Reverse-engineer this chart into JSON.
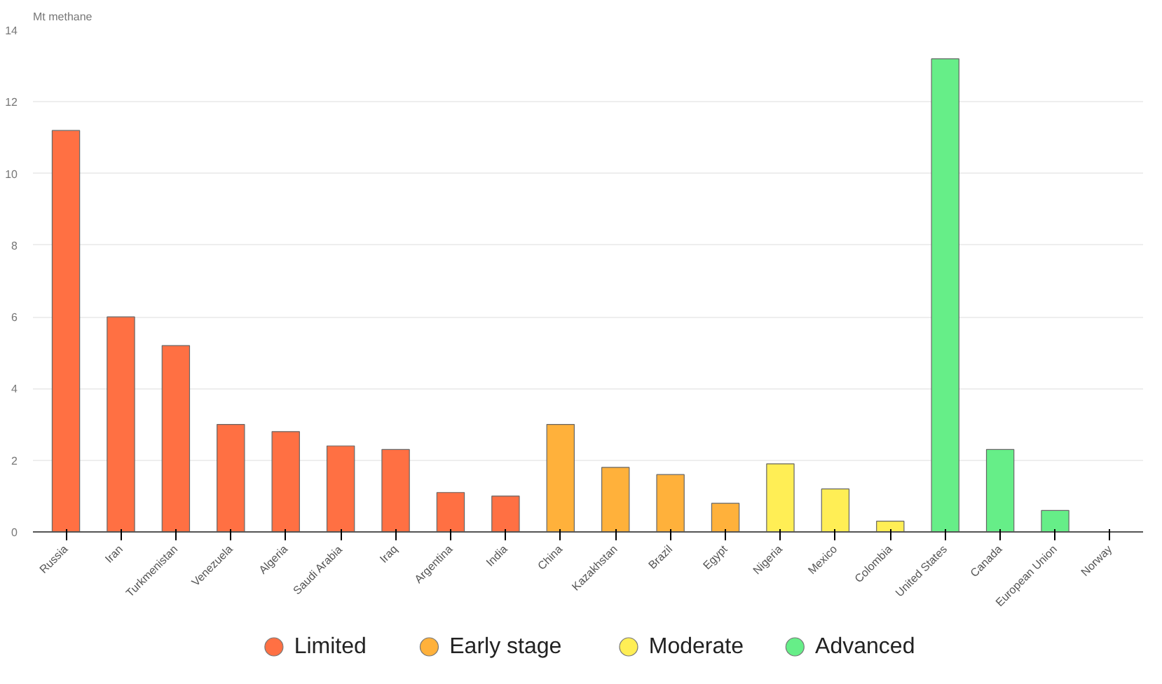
{
  "chart_data": {
    "type": "bar",
    "ylabel": "Mt methane",
    "categories": [
      "Russia",
      "Iran",
      "Turkmenistan",
      "Venezuela",
      "Algeria",
      "Saudi Arabia",
      "Iraq",
      "Argentina",
      "India",
      "China",
      "Kazakhstan",
      "Brazil",
      "Egypt",
      "Nigeria",
      "Mexico",
      "Colombia",
      "United States",
      "Canada",
      "European Union",
      "Norway"
    ],
    "series": [
      {
        "name": "Limited",
        "color": "#ff7043",
        "values": [
          11.2,
          6.0,
          5.2,
          3.0,
          2.8,
          2.4,
          2.3,
          1.1,
          1.0,
          null,
          null,
          null,
          null,
          null,
          null,
          null,
          null,
          null,
          null,
          null
        ]
      },
      {
        "name": "Early stage",
        "color": "#ffb13b",
        "values": [
          null,
          null,
          null,
          null,
          null,
          null,
          null,
          null,
          null,
          3.0,
          1.8,
          1.6,
          0.8,
          null,
          null,
          null,
          null,
          null,
          null,
          null
        ]
      },
      {
        "name": "Moderate",
        "color": "#ffee55",
        "values": [
          null,
          null,
          null,
          null,
          null,
          null,
          null,
          null,
          null,
          null,
          null,
          null,
          null,
          1.9,
          1.2,
          0.3,
          null,
          null,
          null,
          null
        ]
      },
      {
        "name": "Advanced",
        "color": "#66ee88",
        "values": [
          null,
          null,
          null,
          null,
          null,
          null,
          null,
          null,
          null,
          null,
          null,
          null,
          null,
          null,
          null,
          null,
          13.2,
          2.3,
          0.6,
          null
        ]
      }
    ],
    "ylim": [
      0,
      14
    ],
    "yticks": [
      0,
      2,
      4,
      6,
      8,
      10,
      12,
      14
    ],
    "grid": "y",
    "legend": "bottom",
    "marker": "circle"
  }
}
